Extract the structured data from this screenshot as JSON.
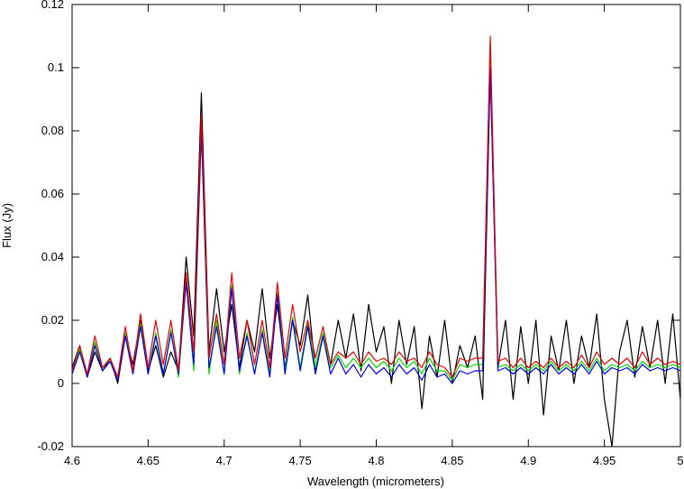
{
  "chart_data": {
    "type": "line",
    "x_label": "Wavelength (micrometers)",
    "y_label": "Flux (Jy)",
    "x": [
      4.6,
      4.605,
      4.61,
      4.615,
      4.62,
      4.625,
      4.63,
      4.635,
      4.64,
      4.645,
      4.65,
      4.655,
      4.66,
      4.665,
      4.67,
      4.675,
      4.68,
      4.685,
      4.69,
      4.695,
      4.7,
      4.705,
      4.71,
      4.715,
      4.72,
      4.725,
      4.73,
      4.735,
      4.74,
      4.745,
      4.75,
      4.755,
      4.76,
      4.765,
      4.77,
      4.775,
      4.78,
      4.785,
      4.79,
      4.795,
      4.8,
      4.805,
      4.81,
      4.815,
      4.82,
      4.825,
      4.83,
      4.835,
      4.84,
      4.845,
      4.85,
      4.855,
      4.86,
      4.865,
      4.87,
      4.875,
      4.88,
      4.885,
      4.89,
      4.895,
      4.9,
      4.905,
      4.91,
      4.915,
      4.92,
      4.925,
      4.93,
      4.935,
      4.94,
      4.945,
      4.95,
      4.955,
      4.96,
      4.965,
      4.97,
      4.975,
      4.98,
      4.985,
      4.99,
      4.995,
      5.0
    ],
    "series": [
      {
        "color": "#000000",
        "values": [
          0.005,
          0.012,
          0.002,
          0.01,
          0.004,
          0.008,
          0.0,
          0.015,
          0.006,
          0.02,
          0.004,
          0.012,
          0.002,
          0.01,
          0.004,
          0.04,
          0.015,
          0.092,
          0.01,
          0.03,
          0.01,
          0.025,
          0.005,
          0.02,
          0.01,
          0.03,
          0.008,
          0.025,
          0.005,
          0.02,
          0.012,
          0.028,
          0.004,
          0.015,
          0.006,
          0.02,
          0.008,
          0.022,
          0.004,
          0.025,
          0.01,
          0.018,
          0.0,
          0.02,
          0.006,
          0.018,
          -0.008,
          0.015,
          0.002,
          0.02,
          0.0,
          0.012,
          0.005,
          0.015,
          -0.005,
          0.1,
          0.005,
          0.02,
          -0.005,
          0.018,
          0.0,
          0.02,
          -0.01,
          0.015,
          0.004,
          0.02,
          0.0,
          0.015,
          0.005,
          0.022,
          -0.005,
          -0.02,
          0.01,
          0.02,
          0.002,
          0.018,
          0.005,
          0.02,
          0.0,
          0.022,
          -0.005
        ]
      },
      {
        "color": "#00dd00",
        "values": [
          0.003,
          0.011,
          0.002,
          0.013,
          0.004,
          0.007,
          0.002,
          0.016,
          0.003,
          0.019,
          0.003,
          0.016,
          0.003,
          0.017,
          0.002,
          0.033,
          0.004,
          0.082,
          0.003,
          0.02,
          0.003,
          0.031,
          0.003,
          0.016,
          0.003,
          0.017,
          0.003,
          0.029,
          0.004,
          0.021,
          0.005,
          0.019,
          0.005,
          0.016,
          0.005,
          0.009,
          0.005,
          0.008,
          0.005,
          0.008,
          0.005,
          0.007,
          0.004,
          0.008,
          0.005,
          0.007,
          0.003,
          0.008,
          0.004,
          0.004,
          0.001,
          0.006,
          0.005,
          0.006,
          0.006,
          0.105,
          0.005,
          0.006,
          0.004,
          0.006,
          0.004,
          0.006,
          0.004,
          0.007,
          0.004,
          0.006,
          0.004,
          0.007,
          0.004,
          0.008,
          0.004,
          0.006,
          0.005,
          0.006,
          0.004,
          0.007,
          0.005,
          0.006,
          0.005,
          0.006,
          0.005
        ]
      },
      {
        "color": "#0000ee",
        "values": [
          0.003,
          0.01,
          0.002,
          0.012,
          0.004,
          0.007,
          0.001,
          0.015,
          0.003,
          0.018,
          0.003,
          0.015,
          0.003,
          0.016,
          0.003,
          0.032,
          0.006,
          0.08,
          0.005,
          0.018,
          0.003,
          0.03,
          0.004,
          0.015,
          0.003,
          0.016,
          0.002,
          0.028,
          0.003,
          0.02,
          0.004,
          0.018,
          0.003,
          0.015,
          0.003,
          0.008,
          0.003,
          0.006,
          0.002,
          0.006,
          0.003,
          0.005,
          0.002,
          0.006,
          0.003,
          0.005,
          0.001,
          0.006,
          0.002,
          0.003,
          0.0,
          0.004,
          0.003,
          0.004,
          0.004,
          0.1,
          0.004,
          0.005,
          0.003,
          0.005,
          0.003,
          0.005,
          0.003,
          0.006,
          0.003,
          0.005,
          0.003,
          0.006,
          0.003,
          0.007,
          0.003,
          0.005,
          0.004,
          0.005,
          0.003,
          0.006,
          0.004,
          0.005,
          0.004,
          0.005,
          0.004
        ]
      },
      {
        "color": "#ee0000",
        "values": [
          0.004,
          0.012,
          0.003,
          0.015,
          0.005,
          0.008,
          0.002,
          0.018,
          0.004,
          0.022,
          0.005,
          0.02,
          0.006,
          0.02,
          0.004,
          0.035,
          0.01,
          0.085,
          0.008,
          0.022,
          0.006,
          0.035,
          0.008,
          0.02,
          0.006,
          0.02,
          0.005,
          0.032,
          0.008,
          0.025,
          0.01,
          0.02,
          0.008,
          0.018,
          0.006,
          0.01,
          0.008,
          0.01,
          0.006,
          0.01,
          0.007,
          0.008,
          0.006,
          0.01,
          0.007,
          0.008,
          0.005,
          0.01,
          0.006,
          0.005,
          0.002,
          0.008,
          0.007,
          0.008,
          0.008,
          0.11,
          0.007,
          0.008,
          0.005,
          0.008,
          0.005,
          0.007,
          0.005,
          0.008,
          0.005,
          0.007,
          0.005,
          0.009,
          0.005,
          0.01,
          0.006,
          0.008,
          0.006,
          0.008,
          0.005,
          0.01,
          0.006,
          0.008,
          0.006,
          0.007,
          0.006
        ]
      }
    ],
    "xlim": [
      4.6,
      5
    ],
    "xticks": [
      4.6,
      4.65,
      4.7,
      4.75,
      4.8,
      4.85,
      4.9,
      4.95,
      5
    ],
    "ylim": [
      -0.02,
      0.12
    ],
    "yticks": [
      -0.02,
      0,
      0.02,
      0.04,
      0.06,
      0.08,
      0.1,
      0.12
    ]
  }
}
